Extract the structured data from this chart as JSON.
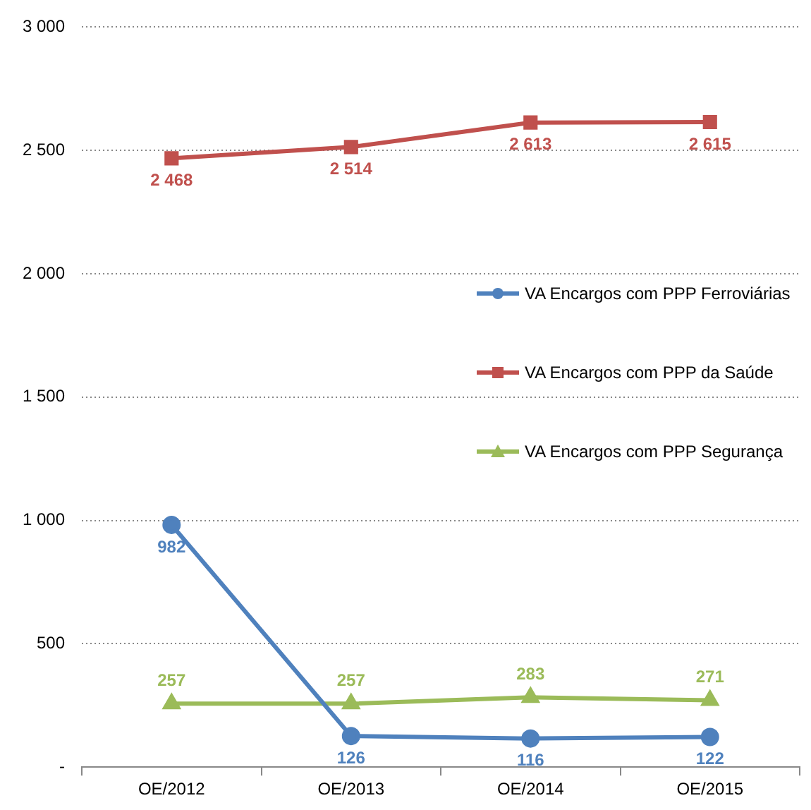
{
  "chart_data": {
    "type": "line",
    "categories": [
      "OE/2012",
      "OE/2013",
      "OE/2014",
      "OE/2015"
    ],
    "series": [
      {
        "name": "VA Encargos com PPP Ferroviárias",
        "color": "#4f81bd",
        "values": [
          982,
          126,
          116,
          122
        ],
        "value_labels": [
          "982",
          "126",
          "116",
          "122"
        ],
        "marker": "circle"
      },
      {
        "name": "VA Encargos com PPP da Saúde",
        "color": "#c0504d",
        "values": [
          2468,
          2514,
          2613,
          2615
        ],
        "value_labels": [
          "2 468",
          "2 514",
          "2 613",
          "2 615"
        ],
        "marker": "square"
      },
      {
        "name": "VA Encargos com PPP Segurança",
        "color": "#9bbb59",
        "values": [
          257,
          257,
          283,
          271
        ],
        "value_labels": [
          "257",
          "257",
          "283",
          "271"
        ],
        "marker": "triangle"
      }
    ],
    "ylim": [
      0,
      3000
    ],
    "yticks": [
      {
        "value": 0,
        "label": "-"
      },
      {
        "value": 500,
        "label": "500"
      },
      {
        "value": 1000,
        "label": "1 000"
      },
      {
        "value": 1500,
        "label": "1 500"
      },
      {
        "value": 2000,
        "label": "2 000"
      },
      {
        "value": 2500,
        "label": "2 500"
      },
      {
        "value": 3000,
        "label": "3 000"
      }
    ],
    "grid": "y",
    "legend": "right",
    "line_style": "solid"
  }
}
